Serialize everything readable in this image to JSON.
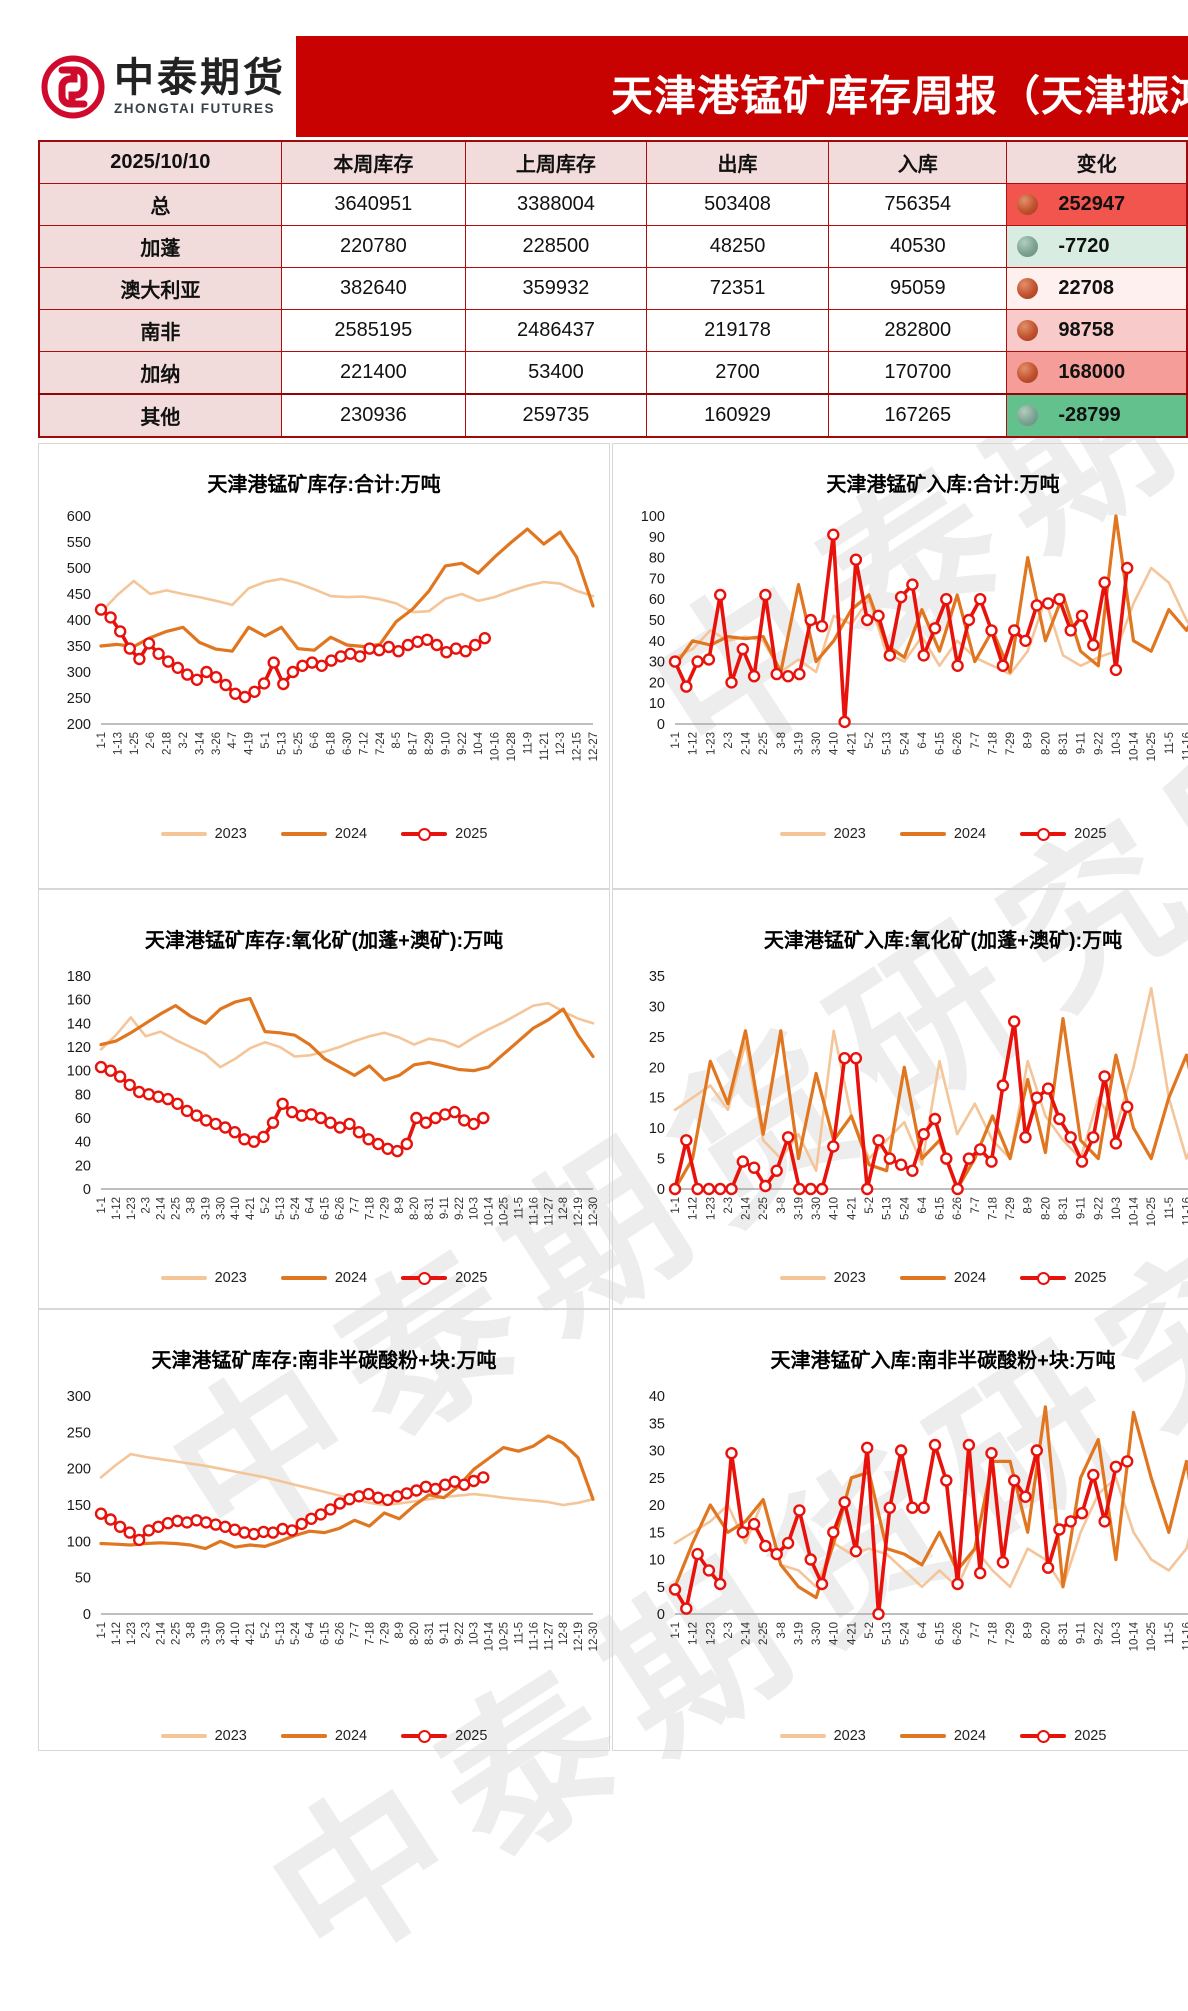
{
  "header": {
    "brand_cn": "中泰期货",
    "brand_en": "ZHONGTAI FUTURES",
    "title": "天津港锰矿库存周报（天津振鸿"
  },
  "watermark": {
    "text": "中泰期货研究所黑色"
  },
  "colors": {
    "banner": "#c80201",
    "s2023": "#f5c59a",
    "s2024": "#e0761f",
    "s2025": "#e8120c",
    "axis": "#a9a9a9"
  },
  "table": {
    "date": "2025/10/10",
    "columns": [
      "本周库存",
      "上周库存",
      "出库",
      "入库",
      "变化"
    ],
    "rows": [
      {
        "label": "总",
        "this_week": "3640951",
        "last_week": "3388004",
        "outbound": "503408",
        "inbound": "756354",
        "change": "252947",
        "trend": "up",
        "bg": "#f2544e"
      },
      {
        "label": "加蓬",
        "this_week": "220780",
        "last_week": "228500",
        "outbound": "48250",
        "inbound": "40530",
        "change": "-7720",
        "trend": "down",
        "bg": "#d8ece1"
      },
      {
        "label": "澳大利亚",
        "this_week": "382640",
        "last_week": "359932",
        "outbound": "72351",
        "inbound": "95059",
        "change": "22708",
        "trend": "up",
        "bg": "#fdf0ef"
      },
      {
        "label": "南非",
        "this_week": "2585195",
        "last_week": "2486437",
        "outbound": "219178",
        "inbound": "282800",
        "change": "98758",
        "trend": "up",
        "bg": "#f8caca"
      },
      {
        "label": "加纳",
        "this_week": "221400",
        "last_week": "53400",
        "outbound": "2700",
        "inbound": "170700",
        "change": "168000",
        "trend": "up",
        "bg": "#f59e99"
      },
      {
        "label": "其他",
        "this_week": "230936",
        "last_week": "259735",
        "outbound": "160929",
        "inbound": "167265",
        "change": "-28799",
        "trend": "down",
        "bg": "#63c18d"
      }
    ]
  },
  "legend": [
    "2023",
    "2024",
    "2025"
  ],
  "chart_data": [
    {
      "type": "line",
      "title": "天津港锰矿库存:合计:万吨",
      "ylabel": "万吨",
      "ylim": [
        200,
        600
      ],
      "ystep": 50,
      "grid": false,
      "legend_position": "bottom",
      "xticks": [
        "1-1",
        "1-13",
        "1-25",
        "2-6",
        "2-18",
        "3-2",
        "3-14",
        "3-26",
        "4-7",
        "4-19",
        "5-1",
        "5-13",
        "5-25",
        "6-6",
        "6-18",
        "6-30",
        "7-12",
        "7-24",
        "8-5",
        "8-17",
        "8-29",
        "9-10",
        "9-22",
        "10-4",
        "10-16",
        "10-28",
        "11-9",
        "11-21",
        "12-3",
        "12-15",
        "12-27"
      ],
      "series": [
        {
          "name": "2023",
          "color": "s2023",
          "end_frac": 1,
          "values": [
            415,
            448,
            475,
            450,
            457,
            450,
            444,
            437,
            429,
            461,
            473,
            479,
            471,
            459,
            446,
            444,
            445,
            440,
            432,
            415,
            417,
            441,
            450,
            437,
            444,
            456,
            466,
            473,
            470,
            456,
            446
          ]
        },
        {
          "name": "2024",
          "color": "s2024",
          "end_frac": 1,
          "values": [
            350,
            353,
            349,
            366,
            378,
            386,
            357,
            344,
            340,
            386,
            369,
            386,
            345,
            342,
            367,
            352,
            349,
            353,
            397,
            421,
            456,
            504,
            509,
            490,
            521,
            549,
            575,
            546,
            569,
            521,
            427
          ]
        },
        {
          "name": "2025",
          "color": "s2025",
          "marker": true,
          "end_frac": 0.78,
          "values": [
            420,
            405,
            378,
            345,
            325,
            355,
            335,
            320,
            308,
            295,
            285,
            300,
            290,
            275,
            258,
            252,
            262,
            278,
            318,
            277,
            300,
            312,
            318,
            312,
            322,
            330,
            335,
            330,
            345,
            342,
            348,
            340,
            352,
            358,
            362,
            352,
            338,
            345,
            340,
            352,
            365
          ]
        }
      ]
    },
    {
      "type": "line",
      "title": "天津港锰矿入库:合计:万吨",
      "ylabel": "万吨",
      "ylim": [
        0,
        100
      ],
      "ystep": 10,
      "grid": false,
      "legend_position": "bottom",
      "xticks": [
        "1-1",
        "1-12",
        "1-23",
        "2-3",
        "2-14",
        "2-25",
        "3-8",
        "3-19",
        "3-30",
        "4-10",
        "4-21",
        "5-2",
        "5-13",
        "5-24",
        "6-4",
        "6-15",
        "6-26",
        "7-7",
        "7-18",
        "7-29",
        "8-9",
        "8-20",
        "8-31",
        "9-11",
        "9-22",
        "10-3",
        "10-14",
        "10-25",
        "11-5",
        "11-16",
        "11-27",
        "12-8",
        "12-19",
        "12-30"
      ],
      "series": [
        {
          "name": "2023",
          "color": "s2023",
          "end_frac": 1,
          "values": [
            32,
            36,
            45,
            40,
            42,
            40,
            25,
            31,
            25,
            52,
            48,
            60,
            34,
            30,
            42,
            28,
            40,
            32,
            28,
            24,
            35,
            60,
            33,
            28,
            32,
            35,
            58,
            75,
            68,
            50,
            38,
            45,
            55,
            48
          ]
        },
        {
          "name": "2024",
          "color": "s2024",
          "end_frac": 1,
          "values": [
            28,
            40,
            38,
            42,
            41,
            42,
            25,
            67,
            30,
            40,
            55,
            62,
            38,
            32,
            55,
            35,
            62,
            30,
            45,
            25,
            80,
            40,
            62,
            35,
            28,
            100,
            40,
            35,
            55,
            45,
            60,
            50,
            40,
            45
          ]
        },
        {
          "name": "2025",
          "color": "s2025",
          "marker": true,
          "end_frac": 0.777,
          "values": [
            30,
            18,
            30,
            31,
            62,
            20,
            36,
            23,
            62,
            24,
            23,
            24,
            50,
            47,
            91,
            1,
            79,
            50,
            52,
            33,
            61,
            67,
            33,
            46,
            60,
            28,
            50,
            60,
            45,
            28,
            45,
            40,
            57,
            58,
            60,
            45,
            52,
            38,
            68,
            26,
            75
          ]
        }
      ]
    },
    {
      "type": "line",
      "title": "天津港锰矿库存:氧化矿(加蓬+澳矿):万吨",
      "ylabel": "万吨",
      "ylim": [
        0,
        180
      ],
      "ystep": 20,
      "grid": false,
      "legend_position": "bottom",
      "xticks": [
        "1-1",
        "1-12",
        "1-23",
        "2-3",
        "2-14",
        "2-25",
        "3-8",
        "3-19",
        "3-30",
        "4-10",
        "4-21",
        "5-2",
        "5-13",
        "5-24",
        "6-4",
        "6-15",
        "6-26",
        "7-7",
        "7-18",
        "7-29",
        "8-9",
        "8-20",
        "8-31",
        "9-11",
        "9-22",
        "10-3",
        "10-14",
        "10-25",
        "11-5",
        "11-16",
        "11-27",
        "12-8",
        "12-19",
        "12-30"
      ],
      "series": [
        {
          "name": "2023",
          "color": "s2023",
          "end_frac": 1,
          "values": [
            118,
            130,
            145,
            129,
            133,
            126,
            120,
            114,
            103,
            110,
            119,
            124,
            120,
            112,
            113,
            116,
            120,
            125,
            129,
            132,
            128,
            122,
            127,
            125,
            120,
            128,
            135,
            141,
            148,
            155,
            157,
            150,
            144,
            140
          ]
        },
        {
          "name": "2024",
          "color": "s2024",
          "end_frac": 1,
          "values": [
            122,
            125,
            132,
            140,
            148,
            155,
            146,
            140,
            152,
            158,
            161,
            133,
            132,
            130,
            122,
            110,
            103,
            96,
            104,
            92,
            96,
            105,
            107,
            104,
            101,
            100,
            103,
            114,
            125,
            136,
            143,
            152,
            130,
            112
          ]
        },
        {
          "name": "2025",
          "color": "s2025",
          "marker": true,
          "end_frac": 0.777,
          "values": [
            103,
            100,
            95,
            88,
            82,
            80,
            78,
            76,
            72,
            66,
            62,
            58,
            55,
            52,
            48,
            42,
            40,
            44,
            56,
            72,
            65,
            62,
            63,
            60,
            56,
            52,
            55,
            48,
            42,
            38,
            34,
            32,
            38,
            60,
            56,
            60,
            63,
            65,
            58,
            55,
            60
          ]
        }
      ]
    },
    {
      "type": "line",
      "title": "天津港锰矿入库:氧化矿(加蓬+澳矿):万吨",
      "ylabel": "万吨",
      "ylim": [
        0,
        35
      ],
      "ystep": 5,
      "grid": false,
      "legend_position": "bottom",
      "xticks": [
        "1-1",
        "1-12",
        "1-23",
        "2-3",
        "2-14",
        "2-25",
        "3-8",
        "3-19",
        "3-30",
        "4-10",
        "4-21",
        "5-2",
        "5-13",
        "5-24",
        "6-4",
        "6-15",
        "6-26",
        "7-7",
        "7-18",
        "7-29",
        "8-9",
        "8-20",
        "8-31",
        "9-11",
        "9-22",
        "10-3",
        "10-14",
        "10-25",
        "11-5",
        "11-16",
        "11-27",
        "12-8",
        "12-19",
        "12-30"
      ],
      "series": [
        {
          "name": "2023",
          "color": "s2023",
          "end_frac": 1,
          "values": [
            13,
            15,
            17,
            13,
            24,
            8,
            5,
            9,
            3,
            26,
            12,
            5,
            8,
            11,
            4,
            21,
            9,
            14,
            8,
            5,
            21,
            12,
            8,
            5,
            15,
            10,
            20,
            33,
            15,
            5,
            12,
            25,
            18,
            15
          ]
        },
        {
          "name": "2024",
          "color": "s2024",
          "end_frac": 1,
          "values": [
            0,
            5,
            21,
            14,
            26,
            9,
            26,
            5,
            19,
            8,
            12,
            4,
            3,
            20,
            5,
            8,
            0,
            5,
            12,
            5,
            18,
            6,
            28,
            8,
            5,
            22,
            10,
            5,
            15,
            22,
            8,
            30,
            5,
            12
          ]
        },
        {
          "name": "2025",
          "color": "s2025",
          "marker": true,
          "end_frac": 0.777,
          "values": [
            0,
            8,
            0,
            0,
            0,
            0,
            4.5,
            3.5,
            0.5,
            3,
            8.5,
            0,
            0,
            0,
            7,
            21.5,
            21.5,
            0,
            8,
            5,
            4,
            3,
            9,
            11.5,
            5,
            0,
            5,
            6.5,
            4.5,
            17,
            27.5,
            8.5,
            15,
            16.5,
            11.5,
            8.5,
            4.5,
            8.5,
            18.5,
            7.5,
            13.5
          ]
        }
      ]
    },
    {
      "type": "line",
      "title": "天津港锰矿库存:南非半碳酸粉+块:万吨",
      "ylabel": "万吨",
      "ylim": [
        0,
        300
      ],
      "ystep": 50,
      "grid": false,
      "legend_position": "bottom",
      "xticks": [
        "1-1",
        "1-12",
        "1-23",
        "2-3",
        "2-14",
        "2-25",
        "3-8",
        "3-19",
        "3-30",
        "4-10",
        "4-21",
        "5-2",
        "5-13",
        "5-24",
        "6-4",
        "6-15",
        "6-26",
        "7-7",
        "7-18",
        "7-29",
        "8-9",
        "8-20",
        "8-31",
        "9-11",
        "9-22",
        "10-3",
        "10-14",
        "10-25",
        "11-5",
        "11-16",
        "11-27",
        "12-8",
        "12-19",
        "12-30"
      ],
      "series": [
        {
          "name": "2023",
          "color": "s2023",
          "end_frac": 1,
          "values": [
            188,
            205,
            220,
            216,
            213,
            210,
            207,
            204,
            200,
            196,
            192,
            188,
            183,
            178,
            173,
            168,
            163,
            158,
            153,
            150,
            152,
            155,
            158,
            161,
            163,
            165,
            163,
            160,
            158,
            156,
            154,
            150,
            153,
            158
          ]
        },
        {
          "name": "2024",
          "color": "s2024",
          "end_frac": 1,
          "values": [
            97,
            96,
            95,
            97,
            98,
            97,
            95,
            90,
            100,
            92,
            95,
            93,
            100,
            108,
            114,
            112,
            118,
            129,
            121,
            139,
            131,
            149,
            164,
            160,
            176,
            199,
            214,
            229,
            224,
            231,
            245,
            235,
            215,
            158
          ]
        },
        {
          "name": "2025",
          "color": "s2025",
          "marker": true,
          "end_frac": 0.777,
          "values": [
            138,
            130,
            120,
            112,
            102,
            115,
            120,
            125,
            128,
            126,
            129,
            126,
            123,
            120,
            116,
            112,
            110,
            113,
            112,
            117,
            115,
            124,
            131,
            137,
            144,
            152,
            158,
            162,
            165,
            160,
            157,
            162,
            166,
            170,
            175,
            172,
            178,
            182,
            178,
            183,
            188
          ]
        }
      ]
    },
    {
      "type": "line",
      "title": "天津港锰矿入库:南非半碳酸粉+块:万吨",
      "ylabel": "万吨",
      "ylim": [
        0,
        40
      ],
      "ystep": 5,
      "grid": false,
      "legend_position": "bottom",
      "xticks": [
        "1-1",
        "1-12",
        "1-23",
        "2-3",
        "2-14",
        "2-25",
        "3-8",
        "3-19",
        "3-30",
        "4-10",
        "4-21",
        "5-2",
        "5-13",
        "5-24",
        "6-4",
        "6-15",
        "6-26",
        "7-7",
        "7-18",
        "7-29",
        "8-9",
        "8-20",
        "8-31",
        "9-11",
        "9-22",
        "10-3",
        "10-14",
        "10-25",
        "11-5",
        "11-16",
        "11-27",
        "12-8",
        "12-19",
        "12-30"
      ],
      "series": [
        {
          "name": "2023",
          "color": "s2023",
          "end_frac": 1,
          "values": [
            13,
            15,
            17,
            20,
            13,
            21,
            9,
            8,
            5,
            13,
            11,
            12,
            11,
            8,
            5,
            8,
            5,
            12,
            8,
            5,
            12,
            10,
            5,
            15,
            22,
            25,
            15,
            10,
            8,
            12,
            25,
            22,
            17,
            25
          ]
        },
        {
          "name": "2024",
          "color": "s2024",
          "end_frac": 1,
          "values": [
            5,
            13,
            20,
            15,
            17,
            21,
            9,
            5,
            3,
            13,
            25,
            26,
            12,
            11,
            9,
            15,
            8,
            12,
            28,
            28,
            15,
            38,
            5,
            25,
            32,
            10,
            37,
            25,
            15,
            28,
            8,
            25,
            17,
            10
          ]
        },
        {
          "name": "2025",
          "color": "s2025",
          "marker": true,
          "end_frac": 0.777,
          "values": [
            4.5,
            1,
            11,
            8,
            5.5,
            29.5,
            15,
            16.5,
            12.5,
            11,
            13,
            19,
            10,
            5.5,
            15,
            20.5,
            11.5,
            30.5,
            0,
            19.5,
            30,
            19.5,
            19.5,
            31,
            24.5,
            5.5,
            31,
            7.5,
            29.5,
            9.5,
            24.5,
            21.5,
            30,
            8.5,
            15.5,
            17,
            18.5,
            25.5,
            17,
            27,
            28
          ]
        }
      ]
    }
  ]
}
